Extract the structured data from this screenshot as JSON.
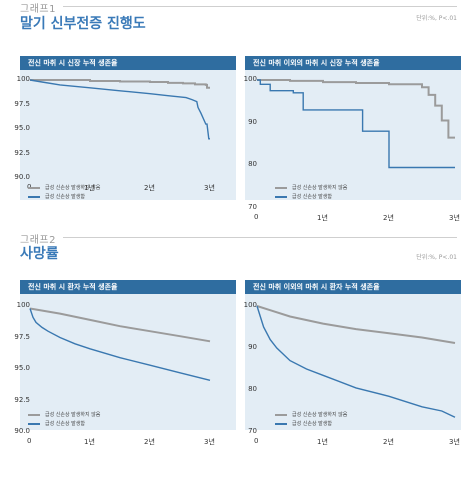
{
  "sections": [
    {
      "label": "그래프1",
      "title": "말기 신부전증 진행도",
      "unit_note": "단위:%, P<.01",
      "legend": [
        {
          "label": "급성 신손상 발생하지 않음",
          "color": "#9b9b9b"
        },
        {
          "label": "급성 신손상 발생함",
          "color": "#3a78b0"
        }
      ]
    },
    {
      "label": "그래프2",
      "title": "사망률",
      "unit_note": "단위:%, P<.01",
      "legend": [
        {
          "label": "급성 신손상 발생하지 않음",
          "color": "#9b9b9b"
        },
        {
          "label": "급성 신손상 발생함",
          "color": "#3a78b0"
        }
      ]
    }
  ],
  "chart_data": [
    {
      "type": "line",
      "title": "전신 마취 시 신장 누적 생존율",
      "ylim": [
        90,
        100
      ],
      "yticks": [
        "100",
        "97.5",
        "95.0",
        "92.5",
        "90.0"
      ],
      "ytick_values": [
        100,
        97.5,
        95,
        92.5,
        90
      ],
      "xlim": [
        0,
        3
      ],
      "xticks": [
        "0",
        "1년",
        "2년",
        "3년"
      ],
      "series": [
        {
          "name": "급성 신손상 발생하지 않음",
          "color": "#9b9b9b",
          "step": true,
          "x": [
            0,
            1.0,
            1.5,
            2.0,
            2.3,
            2.55,
            2.75,
            2.93,
            2.95,
            3.0
          ],
          "y": [
            100,
            99.9,
            99.85,
            99.8,
            99.7,
            99.65,
            99.55,
            99.5,
            99.2,
            99.2
          ]
        },
        {
          "name": "급성 신손상 발생함",
          "color": "#3a78b0",
          "step": false,
          "x": [
            0,
            0.2,
            0.5,
            1.0,
            1.5,
            2.0,
            2.3,
            2.6,
            2.7,
            2.78,
            2.8,
            2.85,
            2.93,
            2.95,
            2.98,
            3.0
          ],
          "y": [
            100,
            99.8,
            99.5,
            99.2,
            98.9,
            98.6,
            98.4,
            98.2,
            98.0,
            97.8,
            97.2,
            96.6,
            95.5,
            95.5,
            94.0,
            94.0
          ]
        }
      ]
    },
    {
      "type": "line",
      "title": "전신 마취 이외의 마취 시 신장 누적 생존율",
      "ylim": [
        70,
        100
      ],
      "yticks": [
        "100",
        "90",
        "80",
        "70"
      ],
      "ytick_values": [
        100,
        90,
        80,
        70
      ],
      "xlim": [
        0,
        3
      ],
      "xticks": [
        "0",
        "1년",
        "2년",
        "3년"
      ],
      "series": [
        {
          "name": "급성 신손상 발생하지 않음",
          "color": "#9b9b9b",
          "step": true,
          "x": [
            0,
            0.5,
            1.0,
            1.5,
            2.0,
            2.5,
            2.6,
            2.7,
            2.8,
            2.9,
            2.95,
            3.0
          ],
          "y": [
            100,
            99.8,
            99.5,
            99.3,
            99,
            98.3,
            96.5,
            94,
            90.5,
            86.5,
            86.5,
            86.5
          ]
        },
        {
          "name": "급성 신손상 발생함",
          "color": "#3a78b0",
          "step": true,
          "x": [
            0,
            0.05,
            0.2,
            0.55,
            0.7,
            1.6,
            1.95,
            2.0,
            3.0
          ],
          "y": [
            100,
            99,
            97.5,
            97,
            93,
            88,
            88,
            79.5,
            79.5
          ]
        }
      ]
    },
    {
      "type": "line",
      "title": "전신 마취 시 환자 누적 생존율",
      "ylim": [
        90,
        100
      ],
      "yticks": [
        "100",
        "97.5",
        "95.0",
        "92.5",
        "90.0"
      ],
      "ytick_values": [
        100,
        97.5,
        95,
        92.5,
        90
      ],
      "xlim": [
        0,
        3
      ],
      "xticks": [
        "0",
        "1년",
        "2년",
        "3년"
      ],
      "series": [
        {
          "name": "급성 신손상 발생하지 않음",
          "color": "#9b9b9b",
          "step": false,
          "x": [
            0,
            0.5,
            1.0,
            1.5,
            2.0,
            2.5,
            3.0
          ],
          "y": [
            99.8,
            99.4,
            98.9,
            98.4,
            98.0,
            97.6,
            97.2
          ]
        },
        {
          "name": "급성 신손상 발생함",
          "color": "#3a78b0",
          "step": false,
          "x": [
            0,
            0.05,
            0.1,
            0.2,
            0.3,
            0.5,
            0.75,
            1.0,
            1.5,
            2.0,
            2.5,
            3.0
          ],
          "y": [
            99.8,
            99.1,
            98.7,
            98.3,
            98.0,
            97.5,
            97.0,
            96.6,
            95.9,
            95.3,
            94.7,
            94.1
          ]
        }
      ]
    },
    {
      "type": "line",
      "title": "전신 마취 이외의 마취 시 환자 누적 생존율",
      "ylim": [
        70,
        100
      ],
      "yticks": [
        "100",
        "90",
        "80",
        "70"
      ],
      "ytick_values": [
        100,
        90,
        80,
        70
      ],
      "xlim": [
        0,
        3
      ],
      "xticks": [
        "0",
        "1년",
        "2년",
        "3년"
      ],
      "series": [
        {
          "name": "급성 신손상 발생하지 않음",
          "color": "#9b9b9b",
          "step": false,
          "x": [
            0,
            0.2,
            0.5,
            1.0,
            1.5,
            2.0,
            2.5,
            3.0
          ],
          "y": [
            100,
            99,
            97.5,
            95.8,
            94.5,
            93.5,
            92.5,
            91.2
          ]
        },
        {
          "name": "급성 신손상 발생함",
          "color": "#3a78b0",
          "step": false,
          "x": [
            0,
            0.05,
            0.1,
            0.2,
            0.3,
            0.5,
            0.75,
            1.0,
            1.5,
            2.0,
            2.5,
            2.8,
            3.0
          ],
          "y": [
            100,
            97.5,
            95,
            92,
            90,
            87,
            85,
            83.5,
            80.5,
            78.5,
            76,
            75,
            73.5
          ]
        }
      ]
    }
  ]
}
